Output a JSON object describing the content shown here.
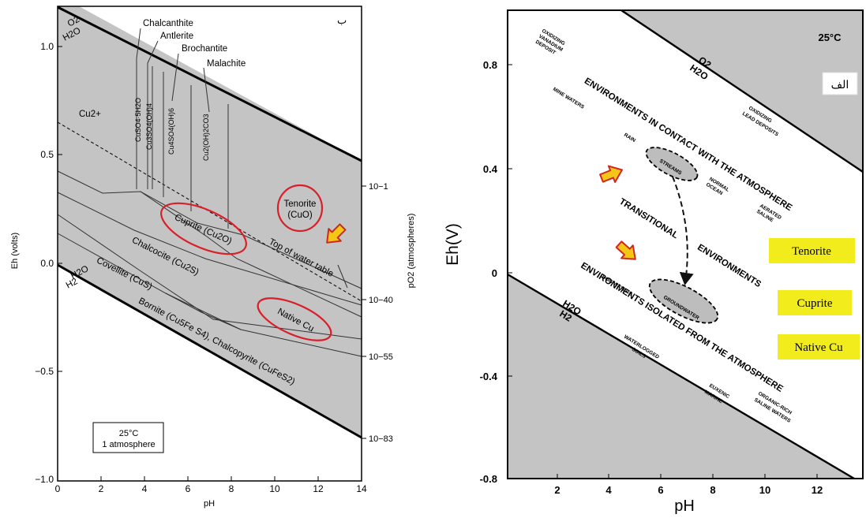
{
  "left_panel": {
    "corner_letter": "ب",
    "xlabel": "pH",
    "ylabel": "Eh (volts)",
    "y2label": "pO2 (atmospheres)",
    "x_ticks": [
      "0",
      "2",
      "4",
      "6",
      "8",
      "10",
      "12",
      "14"
    ],
    "y_ticks": [
      "1.0",
      "0.5",
      "0.0",
      "−0.5",
      "−1.0"
    ],
    "y2_ticks": [
      "10−1",
      "10−40",
      "10−55",
      "10−83"
    ],
    "top_labels": [
      "Chalcanthite",
      "Antlerite",
      "Brochantite",
      "Malachite"
    ],
    "legend_box": [
      "25°C",
      "1 atmosphere"
    ],
    "labels": {
      "o2": "O2",
      "h2o_top": "H2O",
      "h2o_bottom": "H2O",
      "h2": "H2",
      "cu2": "Cu2+",
      "cuso4": "CuSO4·5H2O",
      "antl": "Cu3SO4(OH)4",
      "broch": "Cu4SO4(OH)6",
      "mal": "Cu2(OH)2CO3",
      "tenorite": "Tenorite",
      "cuo": "(CuO)",
      "cuprite": "Cuprite (Cu2O)",
      "water_table": "Top of water table",
      "chalcocite": "Chalcocite (Cu2S)",
      "covellite": "Covellite (CuS)",
      "native": "Native Cu",
      "bornite": "Bornite (Cu5Fe S4), Chalcopyrite (CuFeS2)"
    }
  },
  "right_panel": {
    "corner_label": "الف",
    "temperature": "25°C",
    "xlabel": "pH",
    "ylabel": "Eh(V)",
    "x_ticks": [
      "2",
      "4",
      "6",
      "8",
      "10",
      "12"
    ],
    "y_ticks": [
      "0.8",
      "0.4",
      "0",
      "-0.4",
      "-0.8"
    ],
    "o2": "O2",
    "h2o_top": "H2O",
    "h2o_bottom": "H2O",
    "h2": "H2",
    "env_contact": "ENVIRONMENTS IN CONTACT WITH THE ATMOSPHERE",
    "env_transitional": "TRANSITIONAL",
    "env_environments": "ENVIRONMENTS",
    "env_isolated": "ENVIRONMENTS ISOLATED FROM THE ATMOSPHERE",
    "small_labels": {
      "oxidizing_vanadium": [
        "OXIDIZING",
        "VANADIUM",
        "DEPOSIT"
      ],
      "oxidizing_lead": [
        "OXIDIZING",
        "LEAD DEPOSITS"
      ],
      "mine_waters": "MINE WATERS",
      "rain": "RAIN",
      "streams": "STREAMS",
      "normal_ocean": [
        "NORMAL",
        "OCEAN"
      ],
      "aerated_saline": [
        "AERATED",
        "SALINE"
      ],
      "bog_waters": "BOG WATERS",
      "groundwater": "GROUNDWATER",
      "waterlogged_soils": [
        "WATERLOGGED",
        "SOILS"
      ],
      "euxenic_marine": [
        "EUXENIC",
        "MARINE"
      ],
      "organic_saline": [
        "ORGANIC-RICH",
        "SALINE WATERS"
      ]
    },
    "mineral_boxes": [
      "Tenorite",
      "Cuprite",
      "Native Cu"
    ]
  },
  "colors": {
    "gray_fill": "#c4c4c4",
    "ellipse_red": "#d81f2a",
    "arrow_fill": "#f5c518",
    "arrow_stroke": "#d0271e",
    "box_yellow": "#f2ec1c"
  }
}
